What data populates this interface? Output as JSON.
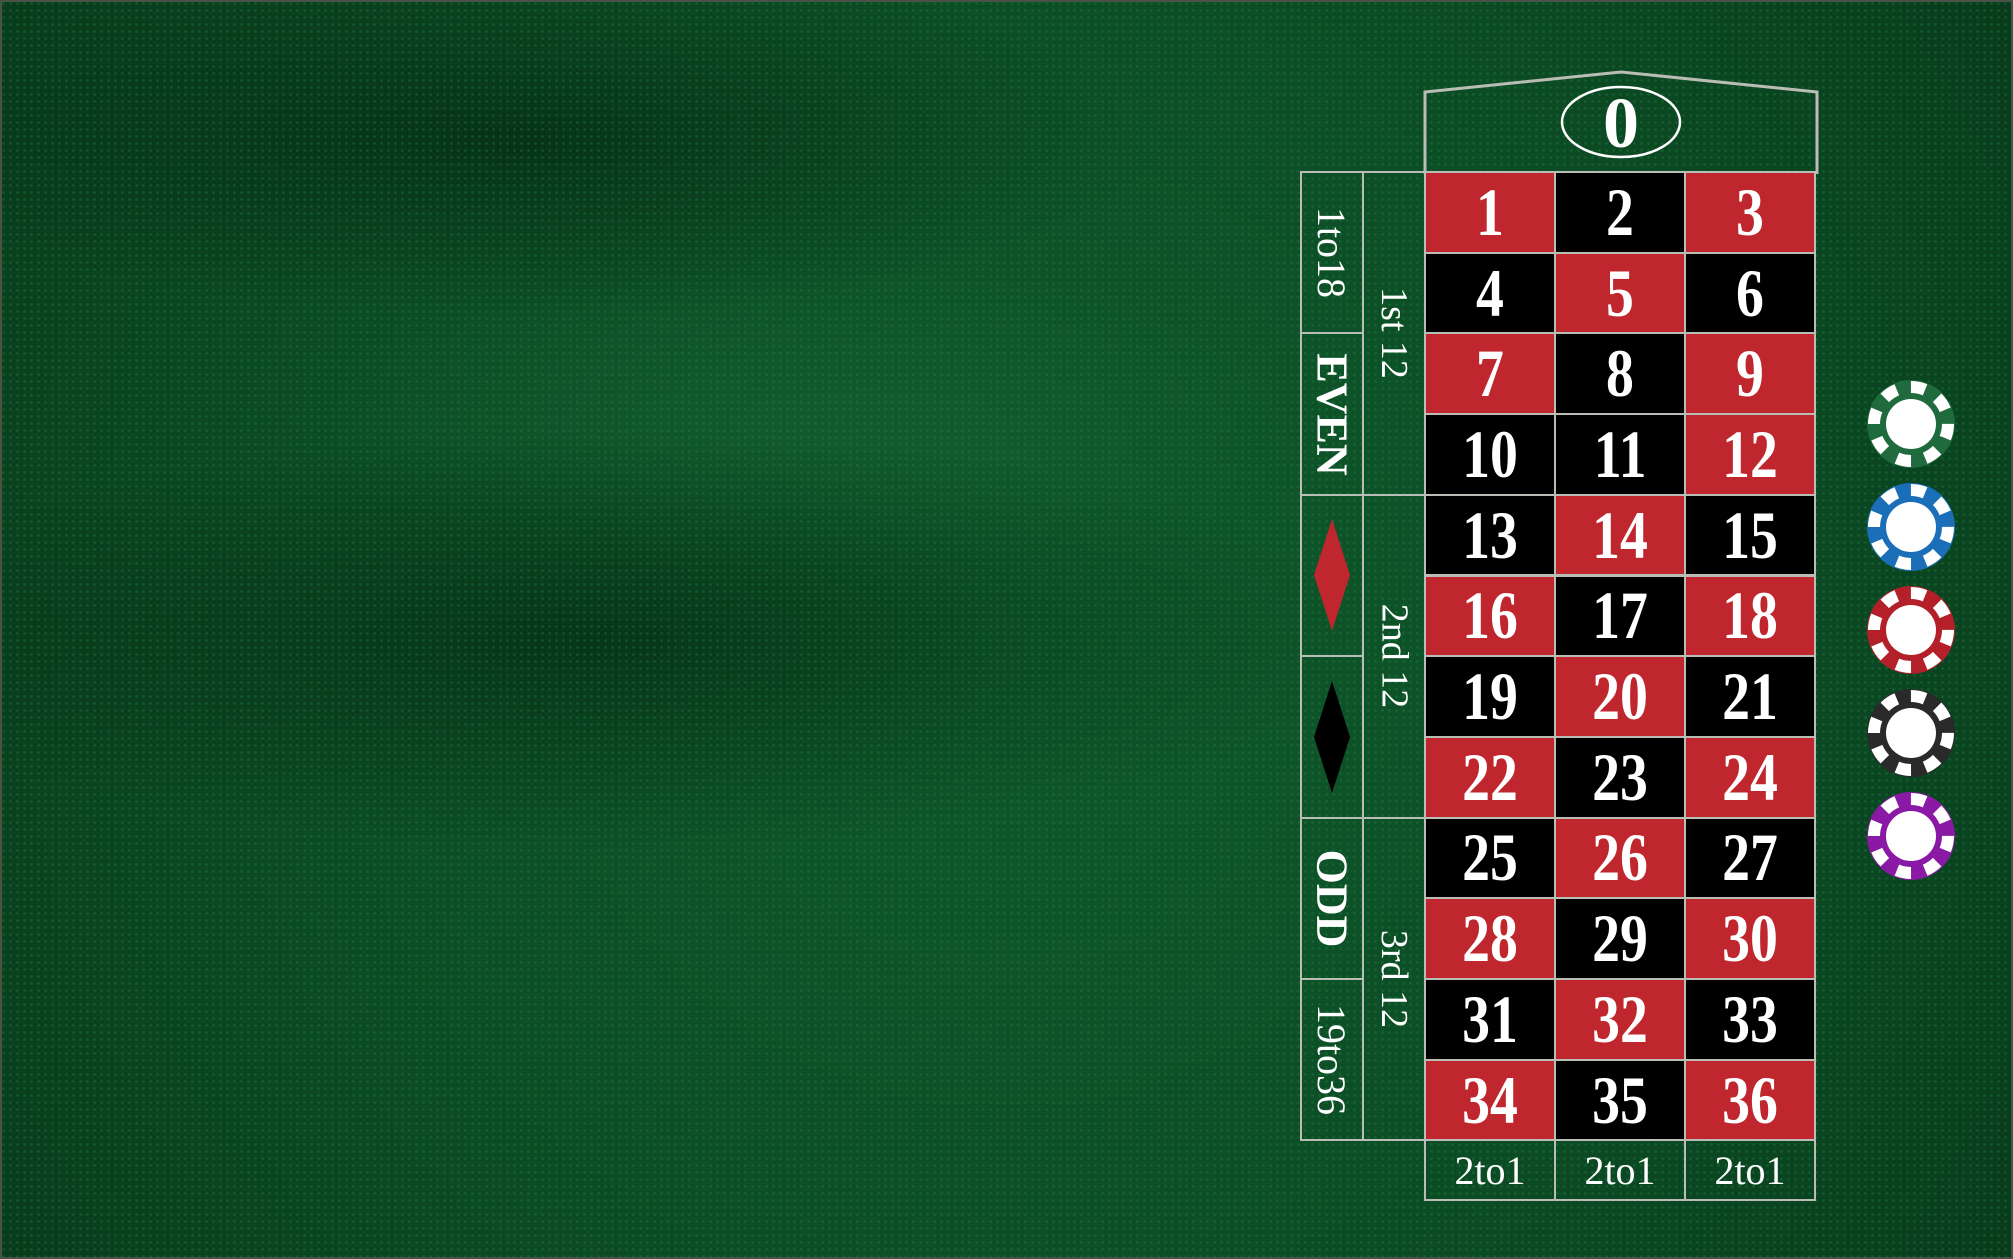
{
  "table": {
    "zero_label": "0",
    "colors": {
      "red": "#c0262d",
      "black": "#000000",
      "felt": "#0d4a24",
      "line": "#b9bdb6"
    },
    "numbers": [
      {
        "n": "1",
        "c": "red"
      },
      {
        "n": "2",
        "c": "black"
      },
      {
        "n": "3",
        "c": "red"
      },
      {
        "n": "4",
        "c": "black"
      },
      {
        "n": "5",
        "c": "red"
      },
      {
        "n": "6",
        "c": "black"
      },
      {
        "n": "7",
        "c": "red"
      },
      {
        "n": "8",
        "c": "black"
      },
      {
        "n": "9",
        "c": "red"
      },
      {
        "n": "10",
        "c": "black"
      },
      {
        "n": "11",
        "c": "black"
      },
      {
        "n": "12",
        "c": "red"
      },
      {
        "n": "13",
        "c": "black"
      },
      {
        "n": "14",
        "c": "red"
      },
      {
        "n": "15",
        "c": "black"
      },
      {
        "n": "16",
        "c": "red"
      },
      {
        "n": "17",
        "c": "black"
      },
      {
        "n": "18",
        "c": "red"
      },
      {
        "n": "19",
        "c": "black"
      },
      {
        "n": "20",
        "c": "red"
      },
      {
        "n": "21",
        "c": "black"
      },
      {
        "n": "22",
        "c": "red"
      },
      {
        "n": "23",
        "c": "black"
      },
      {
        "n": "24",
        "c": "red"
      },
      {
        "n": "25",
        "c": "black"
      },
      {
        "n": "26",
        "c": "red"
      },
      {
        "n": "27",
        "c": "black"
      },
      {
        "n": "28",
        "c": "red"
      },
      {
        "n": "29",
        "c": "black"
      },
      {
        "n": "30",
        "c": "red"
      },
      {
        "n": "31",
        "c": "black"
      },
      {
        "n": "32",
        "c": "red"
      },
      {
        "n": "33",
        "c": "black"
      },
      {
        "n": "34",
        "c": "red"
      },
      {
        "n": "35",
        "c": "black"
      },
      {
        "n": "36",
        "c": "red"
      }
    ],
    "columns": [
      "2to1",
      "2to1",
      "2to1"
    ],
    "dozens": [
      "1st 12",
      "2nd 12",
      "3rd 12"
    ],
    "outside": [
      {
        "label": "1to18",
        "kind": "text"
      },
      {
        "label": "EVEN",
        "kind": "text"
      },
      {
        "label": "",
        "kind": "red-diamond"
      },
      {
        "label": "",
        "kind": "black-diamond"
      },
      {
        "label": "ODD",
        "kind": "text"
      },
      {
        "label": "19to36",
        "kind": "text"
      }
    ]
  },
  "chips": [
    {
      "name": "green-chip",
      "color": "#1f6b3e"
    },
    {
      "name": "blue-chip",
      "color": "#1a6fb8"
    },
    {
      "name": "red-chip",
      "color": "#b3202a"
    },
    {
      "name": "black-chip",
      "color": "#2a2a2a"
    },
    {
      "name": "purple-chip",
      "color": "#8a1aa6"
    }
  ]
}
